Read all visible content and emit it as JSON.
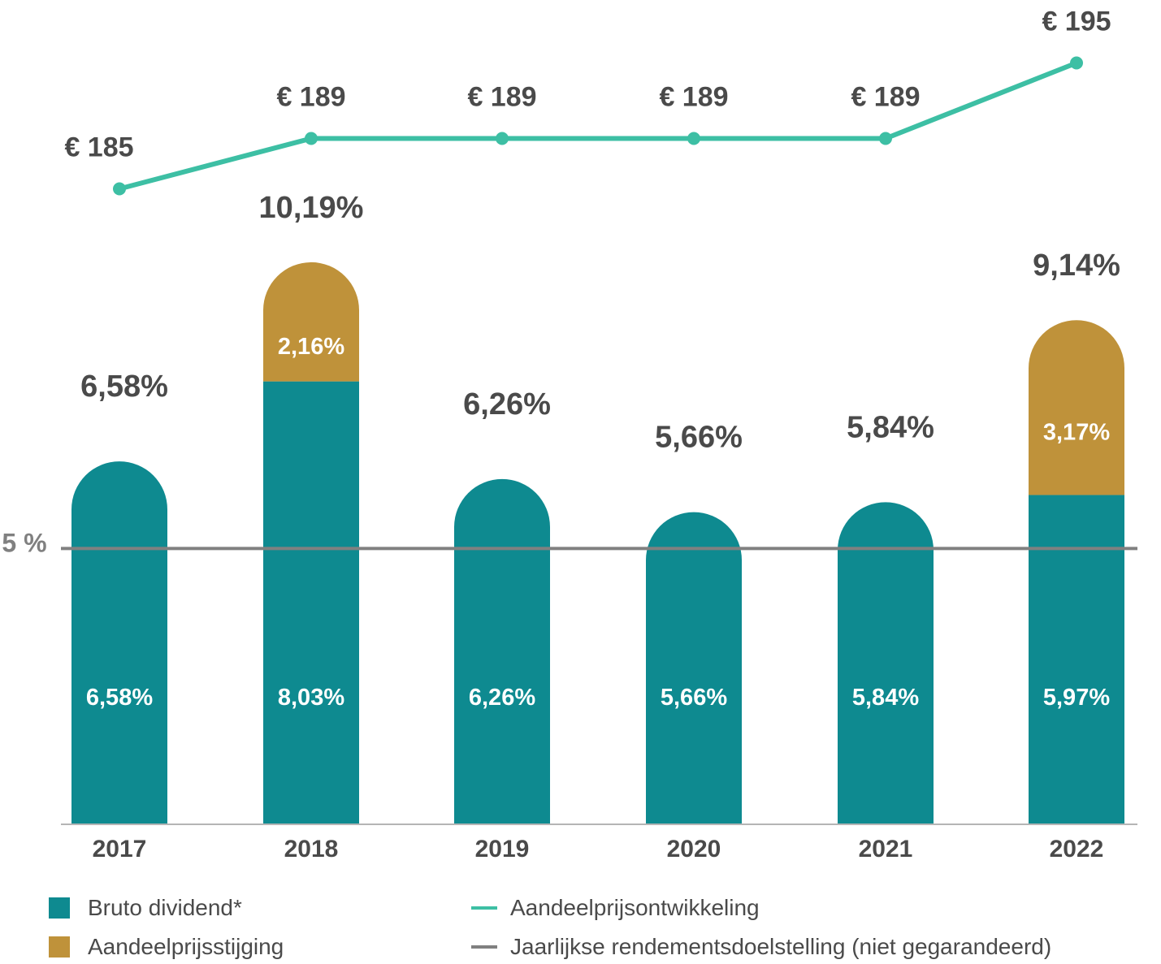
{
  "chart_data": {
    "type": "bar",
    "categories": [
      "2017",
      "2018",
      "2019",
      "2020",
      "2021",
      "2022"
    ],
    "series": [
      {
        "name": "Bruto dividend*",
        "values": [
          6.58,
          8.03,
          6.26,
          5.66,
          5.84,
          5.97
        ],
        "labels": [
          "6,58%",
          "8,03%",
          "6,26%",
          "5,66%",
          "5,84%",
          "5,97%"
        ],
        "color": "#0e8a90"
      },
      {
        "name": "Aandeelprijsstijging",
        "values": [
          0,
          2.16,
          0,
          0,
          0,
          3.17
        ],
        "labels": [
          "",
          "2,16%",
          "",
          "",
          "",
          "3,17%"
        ],
        "color": "#bf923a"
      }
    ],
    "totals": [
      "6,58%",
      "10,19%",
      "6,26%",
      "5,66%",
      "5,84%",
      "9,14%"
    ],
    "line": {
      "name": "Aandeelprijsontwikkeling",
      "values": [
        185,
        189,
        189,
        189,
        189,
        195
      ],
      "labels": [
        "€ 185",
        "€ 189",
        "€ 189",
        "€ 189",
        "€ 189",
        "€ 195"
      ],
      "color": "#3dbfa4"
    },
    "reference": {
      "name": "Jaarlijkse rendementsdoelstelling (niet gegarandeerd)",
      "value": 5,
      "label": "5 %",
      "color": "#808080"
    },
    "ylim": [
      0,
      12
    ]
  },
  "legend": {
    "dividend": "Bruto dividend*",
    "price_rise": "Aandeelprijsstijging",
    "price_dev": "Aandeelprijsontwikkeling",
    "target": "Jaarlijkse rendementsdoelstelling (niet gegarandeerd)"
  }
}
